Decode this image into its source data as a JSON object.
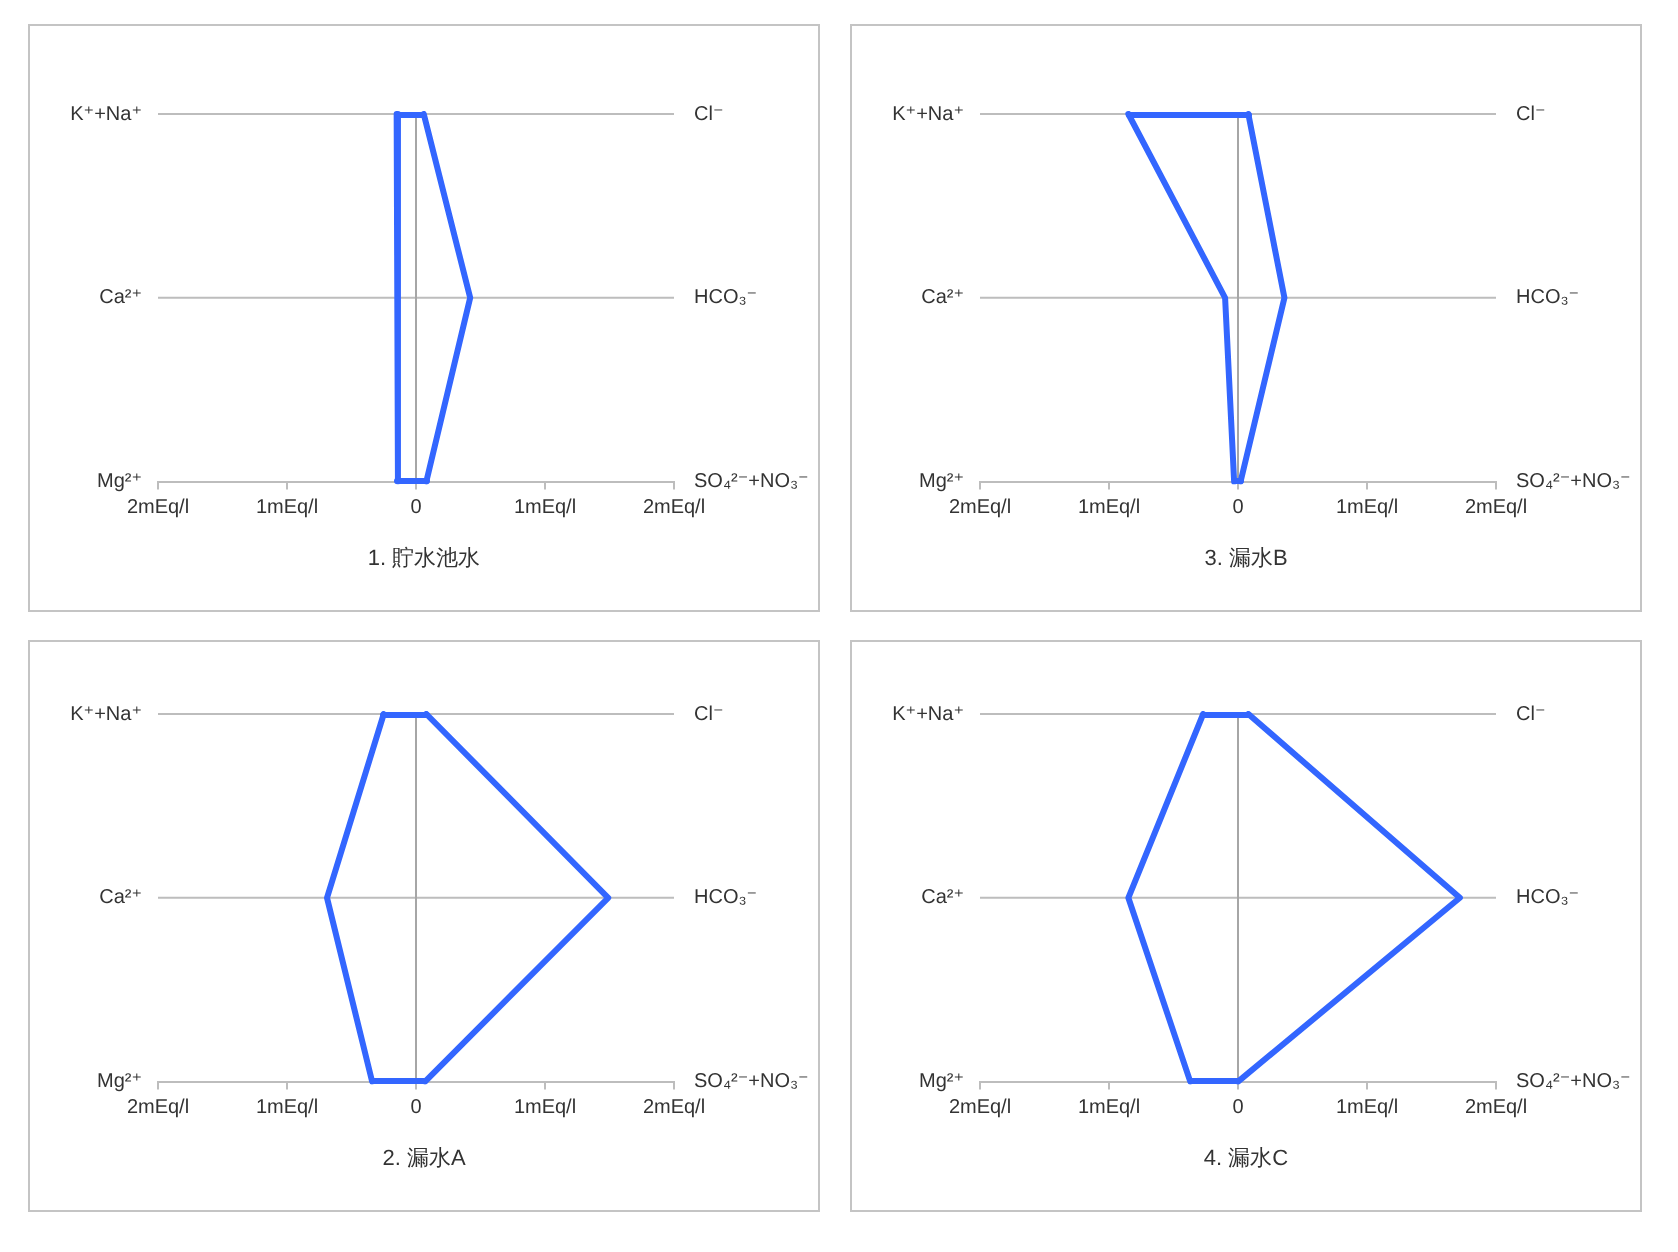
{
  "chart_data": [
    {
      "type": "line",
      "orientation": "horizontal",
      "title": "1. 貯水池水",
      "categories": [
        "K⁺+Na⁺",
        "Ca²⁺",
        "Mg²⁺"
      ],
      "y2_categories": [
        "Cl⁻",
        "HCO₃⁻",
        "SO₄²⁻+NO₃⁻"
      ],
      "series": [
        {
          "color": "#3366ff",
          "values": [
            -0.15,
            -0.14,
            -0.14
          ]
        },
        {
          "color": "#3366ff",
          "values": [
            0.06,
            0.42,
            0.08
          ]
        }
      ],
      "xlim": [
        -2,
        2
      ],
      "xticks": [
        {
          "value": -2,
          "label": "2mEq/l"
        },
        {
          "value": -1,
          "label": "1mEq/l"
        },
        {
          "value": 0,
          "label": "0"
        },
        {
          "value": 1,
          "label": "1mEq/l"
        },
        {
          "value": 2,
          "label": "2mEq/l"
        }
      ],
      "ref_lines": [
        {
          "axis": "y",
          "value": "K⁺+Na⁺",
          "color": "#bdbdbd"
        },
        {
          "axis": "y",
          "value": "Ca²⁺",
          "color": "#bdbdbd"
        },
        {
          "axis": "x",
          "value": 0,
          "color": "#a6a6a6"
        }
      ],
      "line_style": "solid"
    },
    {
      "type": "line",
      "orientation": "horizontal",
      "title": "3. 漏水B",
      "categories": [
        "K⁺+Na⁺",
        "Ca²⁺",
        "Mg²⁺"
      ],
      "y2_categories": [
        "Cl⁻",
        "HCO₃⁻",
        "SO₄²⁻+NO₃⁻"
      ],
      "series": [
        {
          "color": "#3366ff",
          "values": [
            -0.85,
            -0.1,
            -0.03
          ]
        },
        {
          "color": "#3366ff",
          "values": [
            0.08,
            0.36,
            0.02
          ]
        }
      ],
      "xlim": [
        -2,
        2
      ],
      "xticks": [
        {
          "value": -2,
          "label": "2mEq/l"
        },
        {
          "value": -1,
          "label": "1mEq/l"
        },
        {
          "value": 0,
          "label": "0"
        },
        {
          "value": 1,
          "label": "1mEq/l"
        },
        {
          "value": 2,
          "label": "2mEq/l"
        }
      ],
      "ref_lines": [
        {
          "axis": "y",
          "value": "K⁺+Na⁺",
          "color": "#bdbdbd"
        },
        {
          "axis": "y",
          "value": "Ca²⁺",
          "color": "#bdbdbd"
        },
        {
          "axis": "x",
          "value": 0,
          "color": "#a6a6a6"
        }
      ],
      "line_style": "solid"
    },
    {
      "type": "line",
      "orientation": "horizontal",
      "title": "2. 漏水A",
      "categories": [
        "K⁺+Na⁺",
        "Ca²⁺",
        "Mg²⁺"
      ],
      "y2_categories": [
        "Cl⁻",
        "HCO₃⁻",
        "SO₄²⁻+NO₃⁻"
      ],
      "series": [
        {
          "color": "#3366ff",
          "values": [
            -0.25,
            -0.69,
            -0.34
          ]
        },
        {
          "color": "#3366ff",
          "values": [
            0.08,
            1.49,
            0.07
          ]
        }
      ],
      "xlim": [
        -2,
        2
      ],
      "xticks": [
        {
          "value": -2,
          "label": "2mEq/l"
        },
        {
          "value": -1,
          "label": "1mEq/l"
        },
        {
          "value": 0,
          "label": "0"
        },
        {
          "value": 1,
          "label": "1mEq/l"
        },
        {
          "value": 2,
          "label": "2mEq/l"
        }
      ],
      "ref_lines": [
        {
          "axis": "y",
          "value": "K⁺+Na⁺",
          "color": "#bdbdbd"
        },
        {
          "axis": "y",
          "value": "Ca²⁺",
          "color": "#bdbdbd"
        },
        {
          "axis": "x",
          "value": 0,
          "color": "#a6a6a6"
        }
      ],
      "line_style": "solid"
    },
    {
      "type": "line",
      "orientation": "horizontal",
      "title": "4. 漏水C",
      "categories": [
        "K⁺+Na⁺",
        "Ca²⁺",
        "Mg²⁺"
      ],
      "y2_categories": [
        "Cl⁻",
        "HCO₃⁻",
        "SO₄²⁻+NO₃⁻"
      ],
      "series": [
        {
          "color": "#3366ff",
          "values": [
            -0.27,
            -0.85,
            -0.37
          ]
        },
        {
          "color": "#3366ff",
          "values": [
            0.08,
            1.72,
            0
          ]
        }
      ],
      "xlim": [
        -2,
        2
      ],
      "xticks": [
        {
          "value": -2,
          "label": "2mEq/l"
        },
        {
          "value": -1,
          "label": "1mEq/l"
        },
        {
          "value": 0,
          "label": "0"
        },
        {
          "value": 1,
          "label": "1mEq/l"
        },
        {
          "value": 2,
          "label": "2mEq/l"
        }
      ],
      "ref_lines": [
        {
          "axis": "y",
          "value": "K⁺+Na⁺",
          "color": "#bdbdbd"
        },
        {
          "axis": "y",
          "value": "Ca²⁺",
          "color": "#bdbdbd"
        },
        {
          "axis": "x",
          "value": 0,
          "color": "#a6a6a6"
        }
      ],
      "line_style": "solid"
    }
  ]
}
